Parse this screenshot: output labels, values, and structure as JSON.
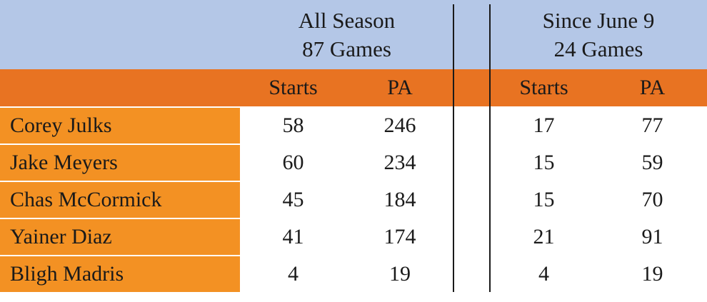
{
  "groups": [
    {
      "line1": "All Season",
      "line2": "87 Games"
    },
    {
      "line1": "Since June 9",
      "line2": "24 Games"
    }
  ],
  "columns": [
    "Starts",
    "PA",
    "Starts",
    "PA"
  ],
  "rows": [
    {
      "name": "Corey Julks",
      "values": [
        "58",
        "246",
        "17",
        "77"
      ]
    },
    {
      "name": "Jake Meyers",
      "values": [
        "60",
        "234",
        "15",
        "59"
      ]
    },
    {
      "name": "Chas McCormick",
      "values": [
        "45",
        "184",
        "15",
        "70"
      ]
    },
    {
      "name": "Yainer Diaz",
      "values": [
        "41",
        "174",
        "21",
        "91"
      ]
    },
    {
      "name": "Bligh Madris",
      "values": [
        "4",
        "19",
        "4",
        "19"
      ]
    }
  ],
  "colors": {
    "header_blue": "#b4c7e7",
    "header_orange": "#e87322",
    "name_orange": "#f39123"
  }
}
